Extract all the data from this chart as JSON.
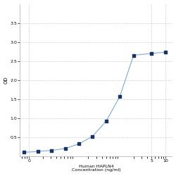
{
  "x": [
    0.0078,
    0.0156,
    0.0313,
    0.0625,
    0.125,
    0.25,
    0.5,
    1,
    2,
    5,
    10
  ],
  "y": [
    0.1,
    0.12,
    0.15,
    0.2,
    0.32,
    0.52,
    0.92,
    1.57,
    2.65,
    2.7,
    2.73
  ],
  "xlabel_line1": "Human HAPLN4",
  "xlabel_line2": "Concentration (ng/ml)",
  "ylabel": "OD",
  "xlim_log": [
    -2.5,
    1.15
  ],
  "ylim": [
    0,
    4.0
  ],
  "yticks": [
    0.5,
    1.0,
    1.5,
    2.0,
    2.5,
    3.0,
    3.5
  ],
  "xticks": [
    0,
    5,
    10
  ],
  "xtick_labels": [
    "0",
    "5",
    "10"
  ],
  "line_color": "#7aadd4",
  "marker_color": "#1a3366",
  "grid_color": "#d0d0d0",
  "background_color": "#ffffff"
}
